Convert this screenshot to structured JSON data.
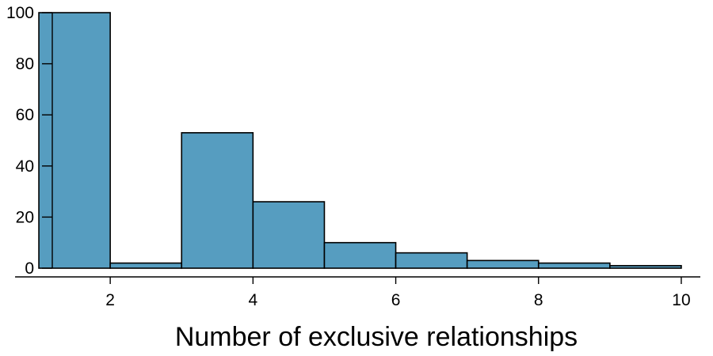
{
  "chart_data": {
    "type": "bar",
    "title": "",
    "xlabel": "Number of exclusive relationships",
    "ylabel": "",
    "bins": [
      {
        "start": 1,
        "end": 2,
        "count": 100
      },
      {
        "start": 2,
        "end": 3,
        "count": 2
      },
      {
        "start": 3,
        "end": 4,
        "count": 53
      },
      {
        "start": 4,
        "end": 5,
        "count": 26
      },
      {
        "start": 5,
        "end": 6,
        "count": 10
      },
      {
        "start": 6,
        "end": 7,
        "count": 6
      },
      {
        "start": 7,
        "end": 8,
        "count": 3
      },
      {
        "start": 8,
        "end": 9,
        "count": 2
      },
      {
        "start": 9,
        "end": 10,
        "count": 1
      }
    ],
    "xlim": [
      0.6,
      10.4
    ],
    "ylim": [
      0,
      100
    ],
    "x_ticks": [
      2,
      4,
      6,
      8,
      10
    ],
    "y_ticks": [
      0,
      20,
      40,
      60,
      80,
      100
    ],
    "bar_color": "#569DC0",
    "grid": false
  }
}
